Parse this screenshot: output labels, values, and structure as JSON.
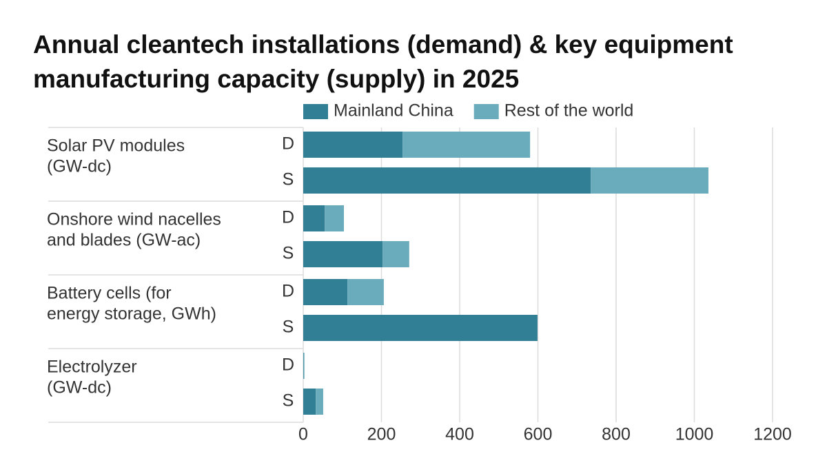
{
  "chart_data": {
    "type": "stacked-barh",
    "title": "Annual cleantech installations (demand) & key equipment manufacturing capacity (supply) in 2025",
    "groups": [
      {
        "label": [
          "Solar PV modules",
          "(GW-dc)"
        ]
      },
      {
        "label": [
          "Onshore wind nacelles",
          "and blades (GW-ac)"
        ]
      },
      {
        "label": [
          "Battery cells (for",
          "energy storage, GWh)"
        ]
      },
      {
        "label": [
          "Electrolyzer",
          "(GW-dc)"
        ]
      }
    ],
    "categories": [
      "D",
      "S",
      "D",
      "S",
      "D",
      "S",
      "D",
      "S"
    ],
    "series": [
      {
        "name": "Mainland China",
        "color": "#317f95",
        "values": [
          254,
          735,
          55,
          203,
          113,
          599,
          1,
          32
        ]
      },
      {
        "name": "Rest of the world",
        "color": "#6aabbc",
        "values": [
          326,
          301,
          49,
          68,
          93,
          0,
          2,
          19
        ]
      }
    ],
    "xlim": [
      0,
      1200
    ],
    "xticks": [
      0,
      200,
      400,
      600,
      800,
      1000,
      1200
    ],
    "grid": true
  }
}
